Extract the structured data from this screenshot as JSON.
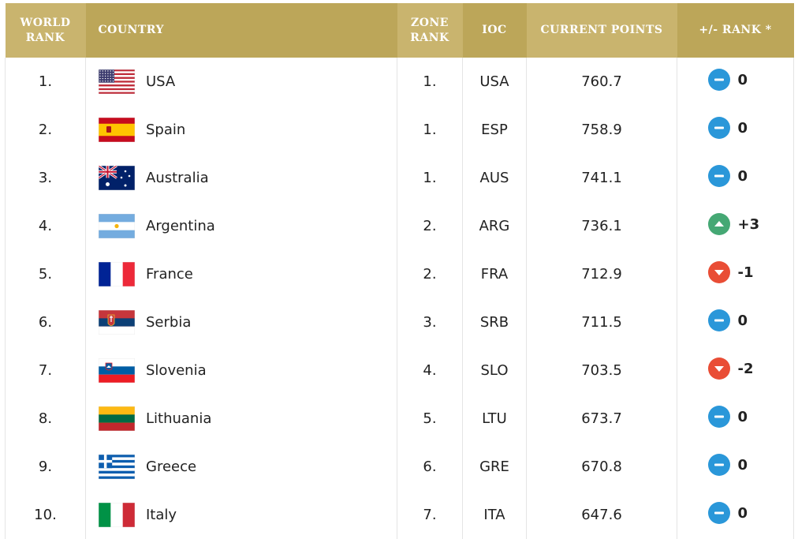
{
  "headers": {
    "world_rank": [
      "WORLD",
      "RANK"
    ],
    "country": "COUNTRY",
    "zone_rank": [
      "ZONE",
      "RANK"
    ],
    "ioc": "IOC",
    "current_points": "CURRENT POINTS",
    "rank_change": "+/- RANK *"
  },
  "colors": {
    "header_dark": "#bca659",
    "header_light": "#c9b46e",
    "neutral": "#2a97d9",
    "up": "#45a874",
    "down": "#e94d35"
  },
  "rows": [
    {
      "world_rank": "1.",
      "country": "USA",
      "flag": "usa-flag-icon",
      "zone_rank": "1.",
      "ioc": "USA",
      "points": "760.7",
      "trend": "neutral",
      "change": "0"
    },
    {
      "world_rank": "2.",
      "country": "Spain",
      "flag": "spain-flag-icon",
      "zone_rank": "1.",
      "ioc": "ESP",
      "points": "758.9",
      "trend": "neutral",
      "change": "0"
    },
    {
      "world_rank": "3.",
      "country": "Australia",
      "flag": "australia-flag-icon",
      "zone_rank": "1.",
      "ioc": "AUS",
      "points": "741.1",
      "trend": "neutral",
      "change": "0"
    },
    {
      "world_rank": "4.",
      "country": "Argentina",
      "flag": "argentina-flag-icon",
      "zone_rank": "2.",
      "ioc": "ARG",
      "points": "736.1",
      "trend": "up",
      "change": "+3"
    },
    {
      "world_rank": "5.",
      "country": "France",
      "flag": "france-flag-icon",
      "zone_rank": "2.",
      "ioc": "FRA",
      "points": "712.9",
      "trend": "down",
      "change": "-1"
    },
    {
      "world_rank": "6.",
      "country": "Serbia",
      "flag": "serbia-flag-icon",
      "zone_rank": "3.",
      "ioc": "SRB",
      "points": "711.5",
      "trend": "neutral",
      "change": "0"
    },
    {
      "world_rank": "7.",
      "country": "Slovenia",
      "flag": "slovenia-flag-icon",
      "zone_rank": "4.",
      "ioc": "SLO",
      "points": "703.5",
      "trend": "down",
      "change": "-2"
    },
    {
      "world_rank": "8.",
      "country": "Lithuania",
      "flag": "lithuania-flag-icon",
      "zone_rank": "5.",
      "ioc": "LTU",
      "points": "673.7",
      "trend": "neutral",
      "change": "0"
    },
    {
      "world_rank": "9.",
      "country": "Greece",
      "flag": "greece-flag-icon",
      "zone_rank": "6.",
      "ioc": "GRE",
      "points": "670.8",
      "trend": "neutral",
      "change": "0"
    },
    {
      "world_rank": "10.",
      "country": "Italy",
      "flag": "italy-flag-icon",
      "zone_rank": "7.",
      "ioc": "ITA",
      "points": "647.6",
      "trend": "neutral",
      "change": "0"
    }
  ]
}
